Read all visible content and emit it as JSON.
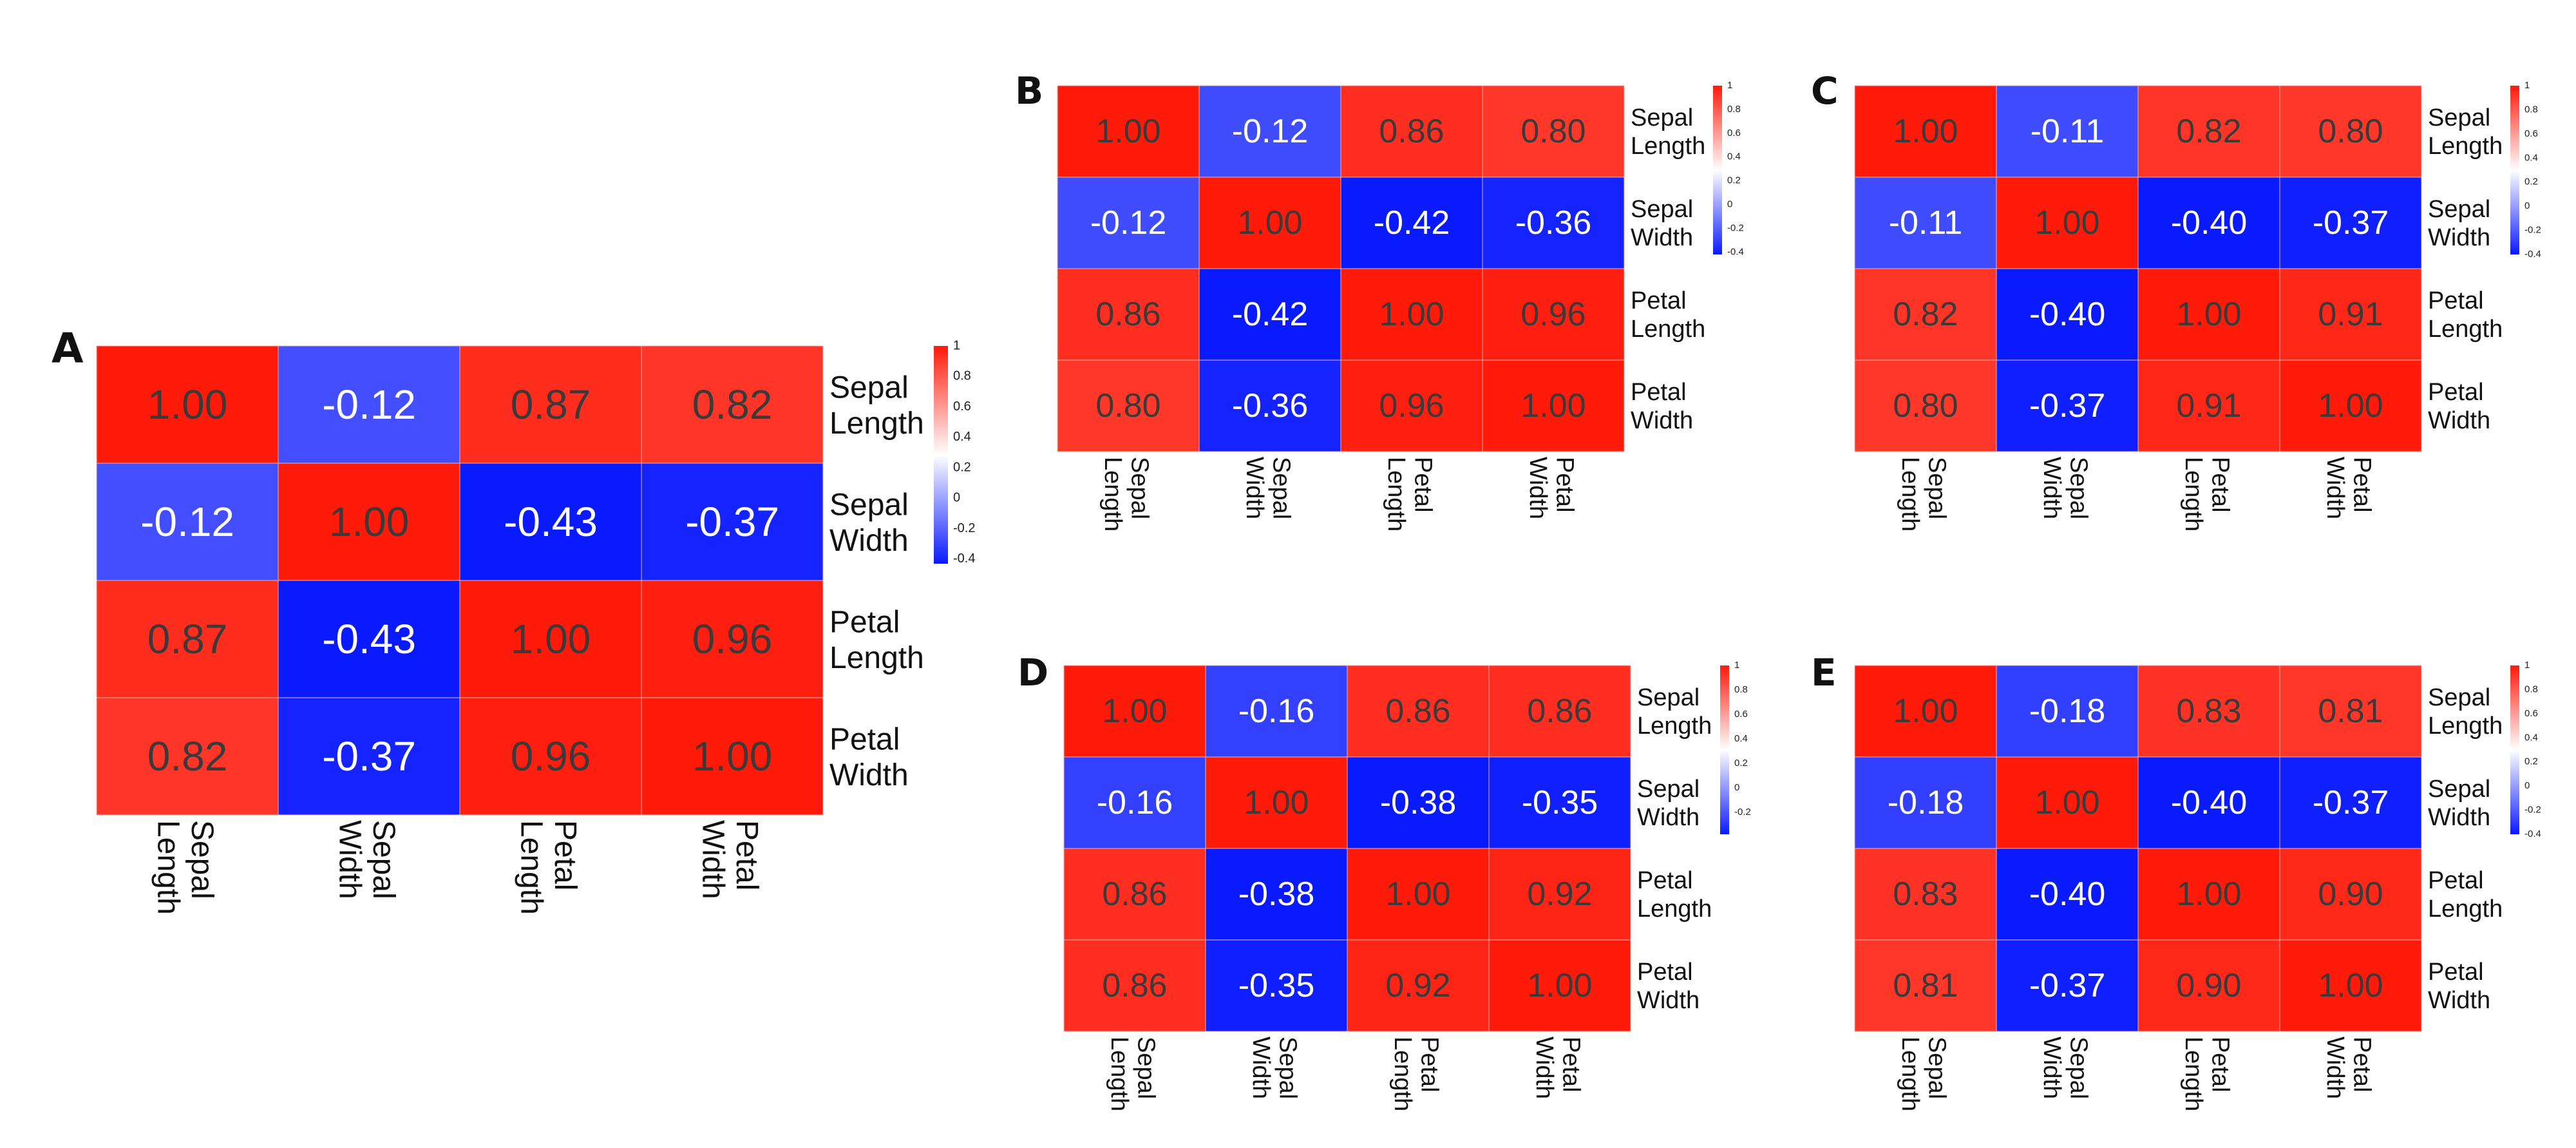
{
  "chart_data": [
    {
      "panel": "A",
      "type": "heatmap",
      "rows": [
        [
          "Sepal",
          "Length"
        ],
        [
          "Sepal",
          "Width"
        ],
        [
          "Petal",
          "Length"
        ],
        [
          "Petal",
          "Width"
        ]
      ],
      "cols": [
        [
          "Sepal",
          "Length"
        ],
        [
          "Sepal",
          "Width"
        ],
        [
          "Petal",
          "Length"
        ],
        [
          "Petal",
          "Width"
        ]
      ],
      "values": [
        [
          1.0,
          -0.12,
          0.87,
          0.82
        ],
        [
          -0.12,
          1.0,
          -0.43,
          -0.37
        ],
        [
          0.87,
          -0.43,
          1.0,
          0.96
        ],
        [
          0.82,
          -0.37,
          0.96,
          1.0
        ]
      ],
      "color_range": [
        -0.43,
        1.0
      ],
      "legend_ticks": [
        1,
        0.8,
        0.6,
        0.4,
        0.2,
        0,
        -0.2,
        -0.4
      ]
    },
    {
      "panel": "B",
      "type": "heatmap",
      "rows": [
        [
          "Sepal",
          "Length"
        ],
        [
          "Sepal",
          "Width"
        ],
        [
          "Petal",
          "Length"
        ],
        [
          "Petal",
          "Width"
        ]
      ],
      "cols": [
        [
          "Sepal",
          "Length"
        ],
        [
          "Sepal",
          "Width"
        ],
        [
          "Petal",
          "Length"
        ],
        [
          "Petal",
          "Width"
        ]
      ],
      "values": [
        [
          1.0,
          -0.12,
          0.86,
          0.8
        ],
        [
          -0.12,
          1.0,
          -0.42,
          -0.36
        ],
        [
          0.86,
          -0.42,
          1.0,
          0.96
        ],
        [
          0.8,
          -0.36,
          0.96,
          1.0
        ]
      ],
      "color_range": [
        -0.42,
        1.0
      ],
      "legend_ticks": [
        1,
        0.8,
        0.6,
        0.4,
        0.2,
        0,
        -0.2,
        -0.4
      ]
    },
    {
      "panel": "C",
      "type": "heatmap",
      "rows": [
        [
          "Sepal",
          "Length"
        ],
        [
          "Sepal",
          "Width"
        ],
        [
          "Petal",
          "Length"
        ],
        [
          "Petal",
          "Width"
        ]
      ],
      "cols": [
        [
          "Sepal",
          "Length"
        ],
        [
          "Sepal",
          "Width"
        ],
        [
          "Petal",
          "Length"
        ],
        [
          "Petal",
          "Width"
        ]
      ],
      "values": [
        [
          1.0,
          -0.11,
          0.82,
          0.8
        ],
        [
          -0.11,
          1.0,
          -0.4,
          -0.37
        ],
        [
          0.82,
          -0.4,
          1.0,
          0.91
        ],
        [
          0.8,
          -0.37,
          0.91,
          1.0
        ]
      ],
      "color_range": [
        -0.4,
        1.0
      ],
      "legend_ticks": [
        1,
        0.8,
        0.6,
        0.4,
        0.2,
        0,
        -0.2,
        -0.4
      ]
    },
    {
      "panel": "D",
      "type": "heatmap",
      "rows": [
        [
          "Sepal",
          "Length"
        ],
        [
          "Sepal",
          "Width"
        ],
        [
          "Petal",
          "Length"
        ],
        [
          "Petal",
          "Width"
        ]
      ],
      "cols": [
        [
          "Sepal",
          "Length"
        ],
        [
          "Sepal",
          "Width"
        ],
        [
          "Petal",
          "Length"
        ],
        [
          "Petal",
          "Width"
        ]
      ],
      "values": [
        [
          1.0,
          -0.16,
          0.86,
          0.86
        ],
        [
          -0.16,
          1.0,
          -0.38,
          -0.35
        ],
        [
          0.86,
          -0.38,
          1.0,
          0.92
        ],
        [
          0.86,
          -0.35,
          0.92,
          1.0
        ]
      ],
      "color_range": [
        -0.38,
        1.0
      ],
      "legend_ticks": [
        1,
        0.8,
        0.6,
        0.4,
        0.2,
        0,
        -0.2
      ]
    },
    {
      "panel": "E",
      "type": "heatmap",
      "rows": [
        [
          "Sepal",
          "Length"
        ],
        [
          "Sepal",
          "Width"
        ],
        [
          "Petal",
          "Length"
        ],
        [
          "Petal",
          "Width"
        ]
      ],
      "cols": [
        [
          "Sepal",
          "Length"
        ],
        [
          "Sepal",
          "Width"
        ],
        [
          "Petal",
          "Length"
        ],
        [
          "Petal",
          "Width"
        ]
      ],
      "values": [
        [
          1.0,
          -0.18,
          0.83,
          0.81
        ],
        [
          -0.18,
          1.0,
          -0.4,
          -0.37
        ],
        [
          0.83,
          -0.4,
          1.0,
          0.9
        ],
        [
          0.81,
          -0.37,
          0.9,
          1.0
        ]
      ],
      "color_range": [
        -0.4,
        1.0
      ],
      "legend_ticks": [
        1,
        0.8,
        0.6,
        0.4,
        0.2,
        0,
        -0.2,
        -0.4
      ]
    }
  ],
  "colors": {
    "high": "#ff1a0a",
    "mid": "#ffffff",
    "low": "#0a1aff",
    "dark_text": "#3a3a3a",
    "light_text": "#ffffff"
  }
}
